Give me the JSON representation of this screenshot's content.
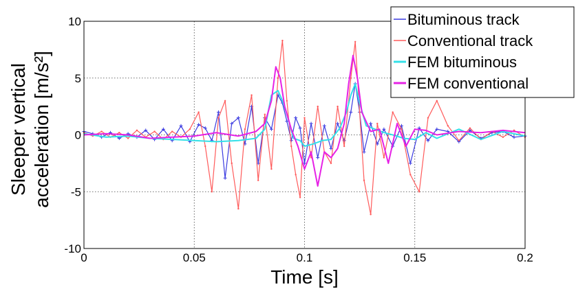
{
  "chart_data": {
    "type": "line",
    "title": "",
    "xlabel": "Time [s]",
    "ylabel": "Sleeper vertical acceleration [m/s²]",
    "xlim": [
      0,
      0.2
    ],
    "ylim": [
      -10,
      10
    ],
    "xticks": [
      "0",
      "0.05",
      "0.1",
      "0.15",
      "0.2"
    ],
    "yticks": [
      "10",
      "5",
      "0",
      "-5",
      "-10"
    ],
    "grid": true,
    "legend_position": "top-right",
    "series": [
      {
        "name": "Bituminous track",
        "color": "#3a3ae0",
        "marker": "plus",
        "x": [
          0,
          0.004,
          0.008,
          0.012,
          0.016,
          0.02,
          0.024,
          0.028,
          0.032,
          0.036,
          0.04,
          0.044,
          0.048,
          0.052,
          0.055,
          0.058,
          0.061,
          0.064,
          0.067,
          0.07,
          0.073,
          0.076,
          0.079,
          0.082,
          0.085,
          0.088,
          0.09,
          0.092,
          0.094,
          0.096,
          0.098,
          0.1,
          0.103,
          0.106,
          0.109,
          0.112,
          0.115,
          0.118,
          0.121,
          0.123,
          0.125,
          0.127,
          0.13,
          0.133,
          0.136,
          0.14,
          0.144,
          0.148,
          0.152,
          0.156,
          0.16,
          0.165,
          0.17,
          0.175,
          0.18,
          0.185,
          0.19,
          0.195,
          0.2
        ],
        "y": [
          0.3,
          0.1,
          -0.2,
          0.2,
          -0.3,
          0.1,
          -0.2,
          0.4,
          -0.4,
          0.5,
          -0.5,
          0.8,
          -0.6,
          0.9,
          0.6,
          -0.5,
          2.0,
          -3.8,
          1.0,
          1.5,
          -0.8,
          2.5,
          -2.5,
          1.5,
          0.5,
          3.5,
          2.8,
          1.2,
          -0.5,
          1.5,
          0.6,
          -2.5,
          1.0,
          -2.0,
          0.8,
          -1.2,
          1.0,
          -0.5,
          2.0,
          4.5,
          2.0,
          -1.5,
          1.0,
          -0.8,
          0.5,
          -1.0,
          0.8,
          -2.5,
          0.6,
          -0.5,
          0.5,
          0.3,
          -0.6,
          0.4,
          -0.3,
          0.2,
          0.3,
          -0.2,
          -0.1
        ]
      },
      {
        "name": "Conventional track",
        "color": "#ff5a5a",
        "marker": "dot",
        "x": [
          0,
          0.004,
          0.008,
          0.012,
          0.016,
          0.02,
          0.024,
          0.028,
          0.032,
          0.036,
          0.04,
          0.044,
          0.048,
          0.052,
          0.055,
          0.058,
          0.061,
          0.064,
          0.067,
          0.07,
          0.073,
          0.076,
          0.079,
          0.082,
          0.085,
          0.088,
          0.09,
          0.092,
          0.094,
          0.096,
          0.098,
          0.1,
          0.103,
          0.106,
          0.109,
          0.112,
          0.115,
          0.118,
          0.121,
          0.123,
          0.125,
          0.127,
          0.13,
          0.133,
          0.136,
          0.14,
          0.144,
          0.148,
          0.152,
          0.156,
          0.16,
          0.165,
          0.17,
          0.175,
          0.18,
          0.185,
          0.19,
          0.195,
          0.2
        ],
        "y": [
          0.2,
          -0.1,
          0.3,
          -0.2,
          0.2,
          -0.3,
          0.4,
          -0.2,
          0.3,
          -0.4,
          0.3,
          -0.2,
          0.5,
          2.0,
          -1.0,
          -5.0,
          1.5,
          3.0,
          -2.5,
          -6.5,
          0.5,
          3.5,
          -4.0,
          1.8,
          -3.0,
          5.0,
          8.3,
          3.0,
          -1.0,
          -3.5,
          -5.5,
          1.5,
          -2.0,
          2.5,
          -1.5,
          -2.5,
          2.5,
          -1.0,
          5.0,
          8.2,
          2.0,
          -4.0,
          -7.0,
          1.0,
          -2.0,
          2.0,
          0.5,
          -3.5,
          -5.0,
          1.5,
          3.0,
          0.8,
          -0.5,
          0.6,
          -0.4,
          0.3,
          -0.2,
          0.4,
          -0.2
        ]
      },
      {
        "name": "FEM bituminous",
        "color": "#33e0e8",
        "marker": "none",
        "x": [
          0,
          0.01,
          0.02,
          0.03,
          0.04,
          0.05,
          0.06,
          0.07,
          0.078,
          0.082,
          0.085,
          0.088,
          0.09,
          0.092,
          0.095,
          0.098,
          0.1,
          0.104,
          0.108,
          0.112,
          0.116,
          0.119,
          0.121,
          0.123,
          0.125,
          0.128,
          0.132,
          0.136,
          0.14,
          0.145,
          0.15,
          0.155,
          0.16,
          0.17,
          0.18,
          0.19,
          0.2
        ],
        "y": [
          0.1,
          -0.2,
          -0.1,
          -0.3,
          -0.4,
          -0.5,
          -0.6,
          -0.5,
          -0.3,
          0.5,
          3.5,
          3.9,
          3.0,
          1.8,
          -0.3,
          -0.5,
          -1.0,
          -0.8,
          -0.5,
          -0.4,
          0.6,
          2.0,
          3.5,
          4.5,
          2.8,
          0.8,
          0.5,
          0.2,
          0.0,
          -0.3,
          -0.4,
          0.2,
          -0.3,
          0.5,
          -0.4,
          0.3,
          -0.1
        ]
      },
      {
        "name": "FEM conventional",
        "color": "#e621e6",
        "marker": "none",
        "x": [
          0,
          0.01,
          0.02,
          0.03,
          0.04,
          0.05,
          0.06,
          0.07,
          0.078,
          0.082,
          0.085,
          0.087,
          0.089,
          0.091,
          0.094,
          0.097,
          0.1,
          0.103,
          0.106,
          0.109,
          0.112,
          0.115,
          0.118,
          0.12,
          0.122,
          0.124,
          0.126,
          0.13,
          0.134,
          0.138,
          0.142,
          0.146,
          0.15,
          0.155,
          0.16,
          0.17,
          0.18,
          0.19,
          0.2
        ],
        "y": [
          0.0,
          0.1,
          0.0,
          -0.3,
          -0.2,
          -0.1,
          0.2,
          -0.1,
          0.3,
          1.0,
          3.0,
          6.0,
          5.0,
          2.5,
          0.5,
          -1.0,
          -3.0,
          -1.5,
          -4.5,
          -1.5,
          -2.0,
          -1.2,
          1.0,
          4.5,
          7.0,
          5.0,
          2.0,
          0.3,
          0.5,
          -2.5,
          1.0,
          -1.0,
          0.5,
          0.4,
          0.0,
          0.3,
          0.2,
          0.4,
          0.2
        ]
      }
    ]
  }
}
